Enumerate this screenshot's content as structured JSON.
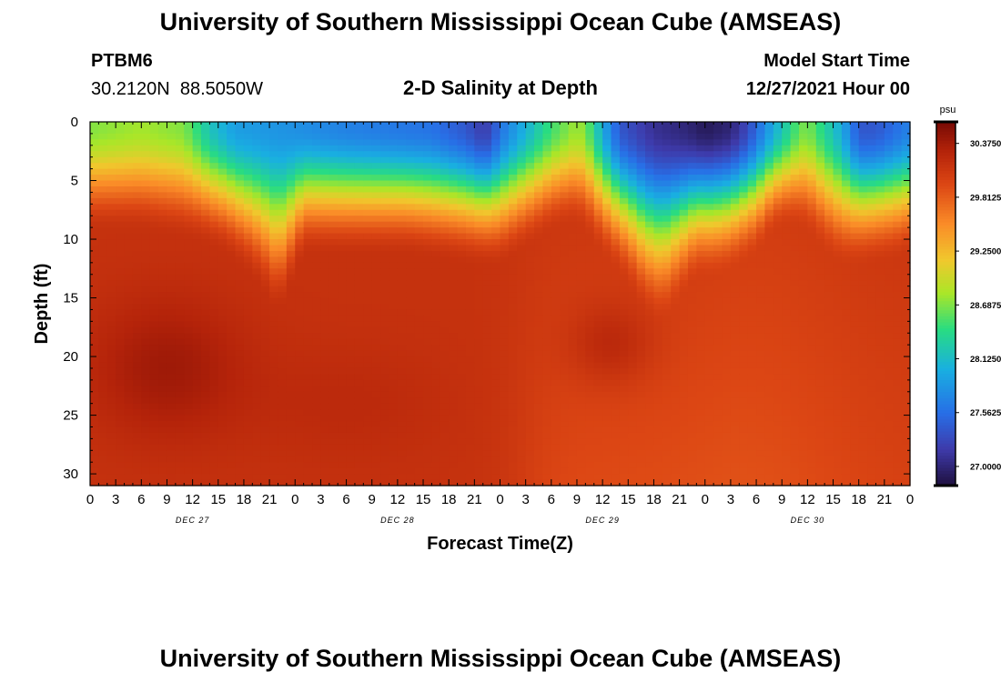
{
  "titles": {
    "main": "University of Southern Mississippi Ocean Cube (AMSEAS)",
    "repeat": "University of Southern Mississippi Ocean Cube (AMSEAS)"
  },
  "station": {
    "id": "PTBM6",
    "coords": "30.2120N  88.5050W"
  },
  "product": "2-D Salinity at Depth",
  "model_start": {
    "label": "Model Start Time",
    "value": "12/27/2021 Hour 00"
  },
  "chart_data": {
    "type": "heatmap",
    "title": "2-D Salinity at Depth",
    "xlabel": "Forecast Time(Z)",
    "ylabel": "Depth (ft)",
    "xlim": [
      0,
      96
    ],
    "ylim": [
      0,
      31
    ],
    "x_ticks": [
      0,
      3,
      6,
      9,
      12,
      15,
      18,
      21,
      24,
      27,
      30,
      33,
      36,
      39,
      42,
      45,
      48,
      51,
      54,
      57,
      60,
      63,
      66,
      69,
      72,
      75,
      78,
      81,
      84,
      87,
      90,
      93,
      96
    ],
    "x_tick_labels": [
      "0",
      "3",
      "6",
      "9",
      "12",
      "15",
      "18",
      "21",
      "0",
      "3",
      "6",
      "9",
      "12",
      "15",
      "18",
      "21",
      "0",
      "3",
      "6",
      "9",
      "12",
      "15",
      "18",
      "21",
      "0",
      "3",
      "6",
      "9",
      "12",
      "15",
      "18",
      "21",
      "0"
    ],
    "y_ticks": [
      0,
      5,
      10,
      15,
      20,
      25,
      30
    ],
    "y_tick_labels": [
      "0",
      "5",
      "10",
      "15",
      "20",
      "25",
      "30"
    ],
    "date_labels": [
      {
        "text": "DEC 27",
        "hour": 12
      },
      {
        "text": "DEC 28",
        "hour": 36
      },
      {
        "text": "DEC 29",
        "hour": 60
      },
      {
        "text": "DEC 30",
        "hour": 84
      }
    ],
    "colorbar": {
      "unit": "psu",
      "min": 26.8,
      "max": 30.6,
      "tick_values": [
        27.0,
        27.5625,
        28.125,
        28.6875,
        29.25,
        29.8125,
        30.375
      ],
      "tick_labels": [
        "27.0000",
        "27.5625",
        "28.1250",
        "28.6875",
        "29.2500",
        "29.8125",
        "30.3750"
      ]
    },
    "halocline_depth_ft": {
      "hours": [
        0,
        6,
        10,
        13,
        16,
        19,
        21,
        22,
        25,
        30,
        37,
        42,
        46,
        47,
        48,
        50,
        54,
        56,
        57,
        58,
        60,
        63,
        65,
        67,
        69,
        71,
        73,
        75,
        78,
        80,
        82,
        84,
        85,
        87,
        88,
        89,
        90,
        94,
        96
      ],
      "depths": [
        2,
        2,
        2.5,
        3,
        4,
        6,
        8,
        9.5,
        4,
        4,
        4,
        4.5,
        5,
        5,
        5,
        4,
        2,
        1.5,
        1.5,
        2,
        4,
        6.5,
        9,
        10,
        8,
        6,
        6,
        5.5,
        4,
        2,
        1.5,
        2,
        3,
        4.5,
        5,
        5,
        5,
        4.5,
        4
      ]
    },
    "surface_salinity_psu": {
      "hours": [
        0,
        6,
        11,
        14,
        17,
        24,
        30,
        40,
        44,
        46,
        47,
        48,
        54,
        57,
        58,
        60,
        62,
        66,
        70,
        72,
        75,
        77,
        80,
        83,
        84,
        88,
        90,
        92,
        96
      ],
      "values": [
        28.7,
        28.8,
        28.7,
        28.2,
        27.9,
        27.8,
        27.7,
        27.6,
        27.4,
        27.2,
        27.3,
        27.6,
        28.5,
        28.8,
        28.7,
        28.0,
        27.4,
        27.1,
        27.0,
        26.9,
        27.0,
        27.3,
        28.0,
        28.6,
        28.7,
        28.0,
        27.4,
        27.4,
        27.7
      ]
    },
    "deep_salinity_max_psu": 30.5,
    "deep_salinity_min_psu": 29.85
  }
}
